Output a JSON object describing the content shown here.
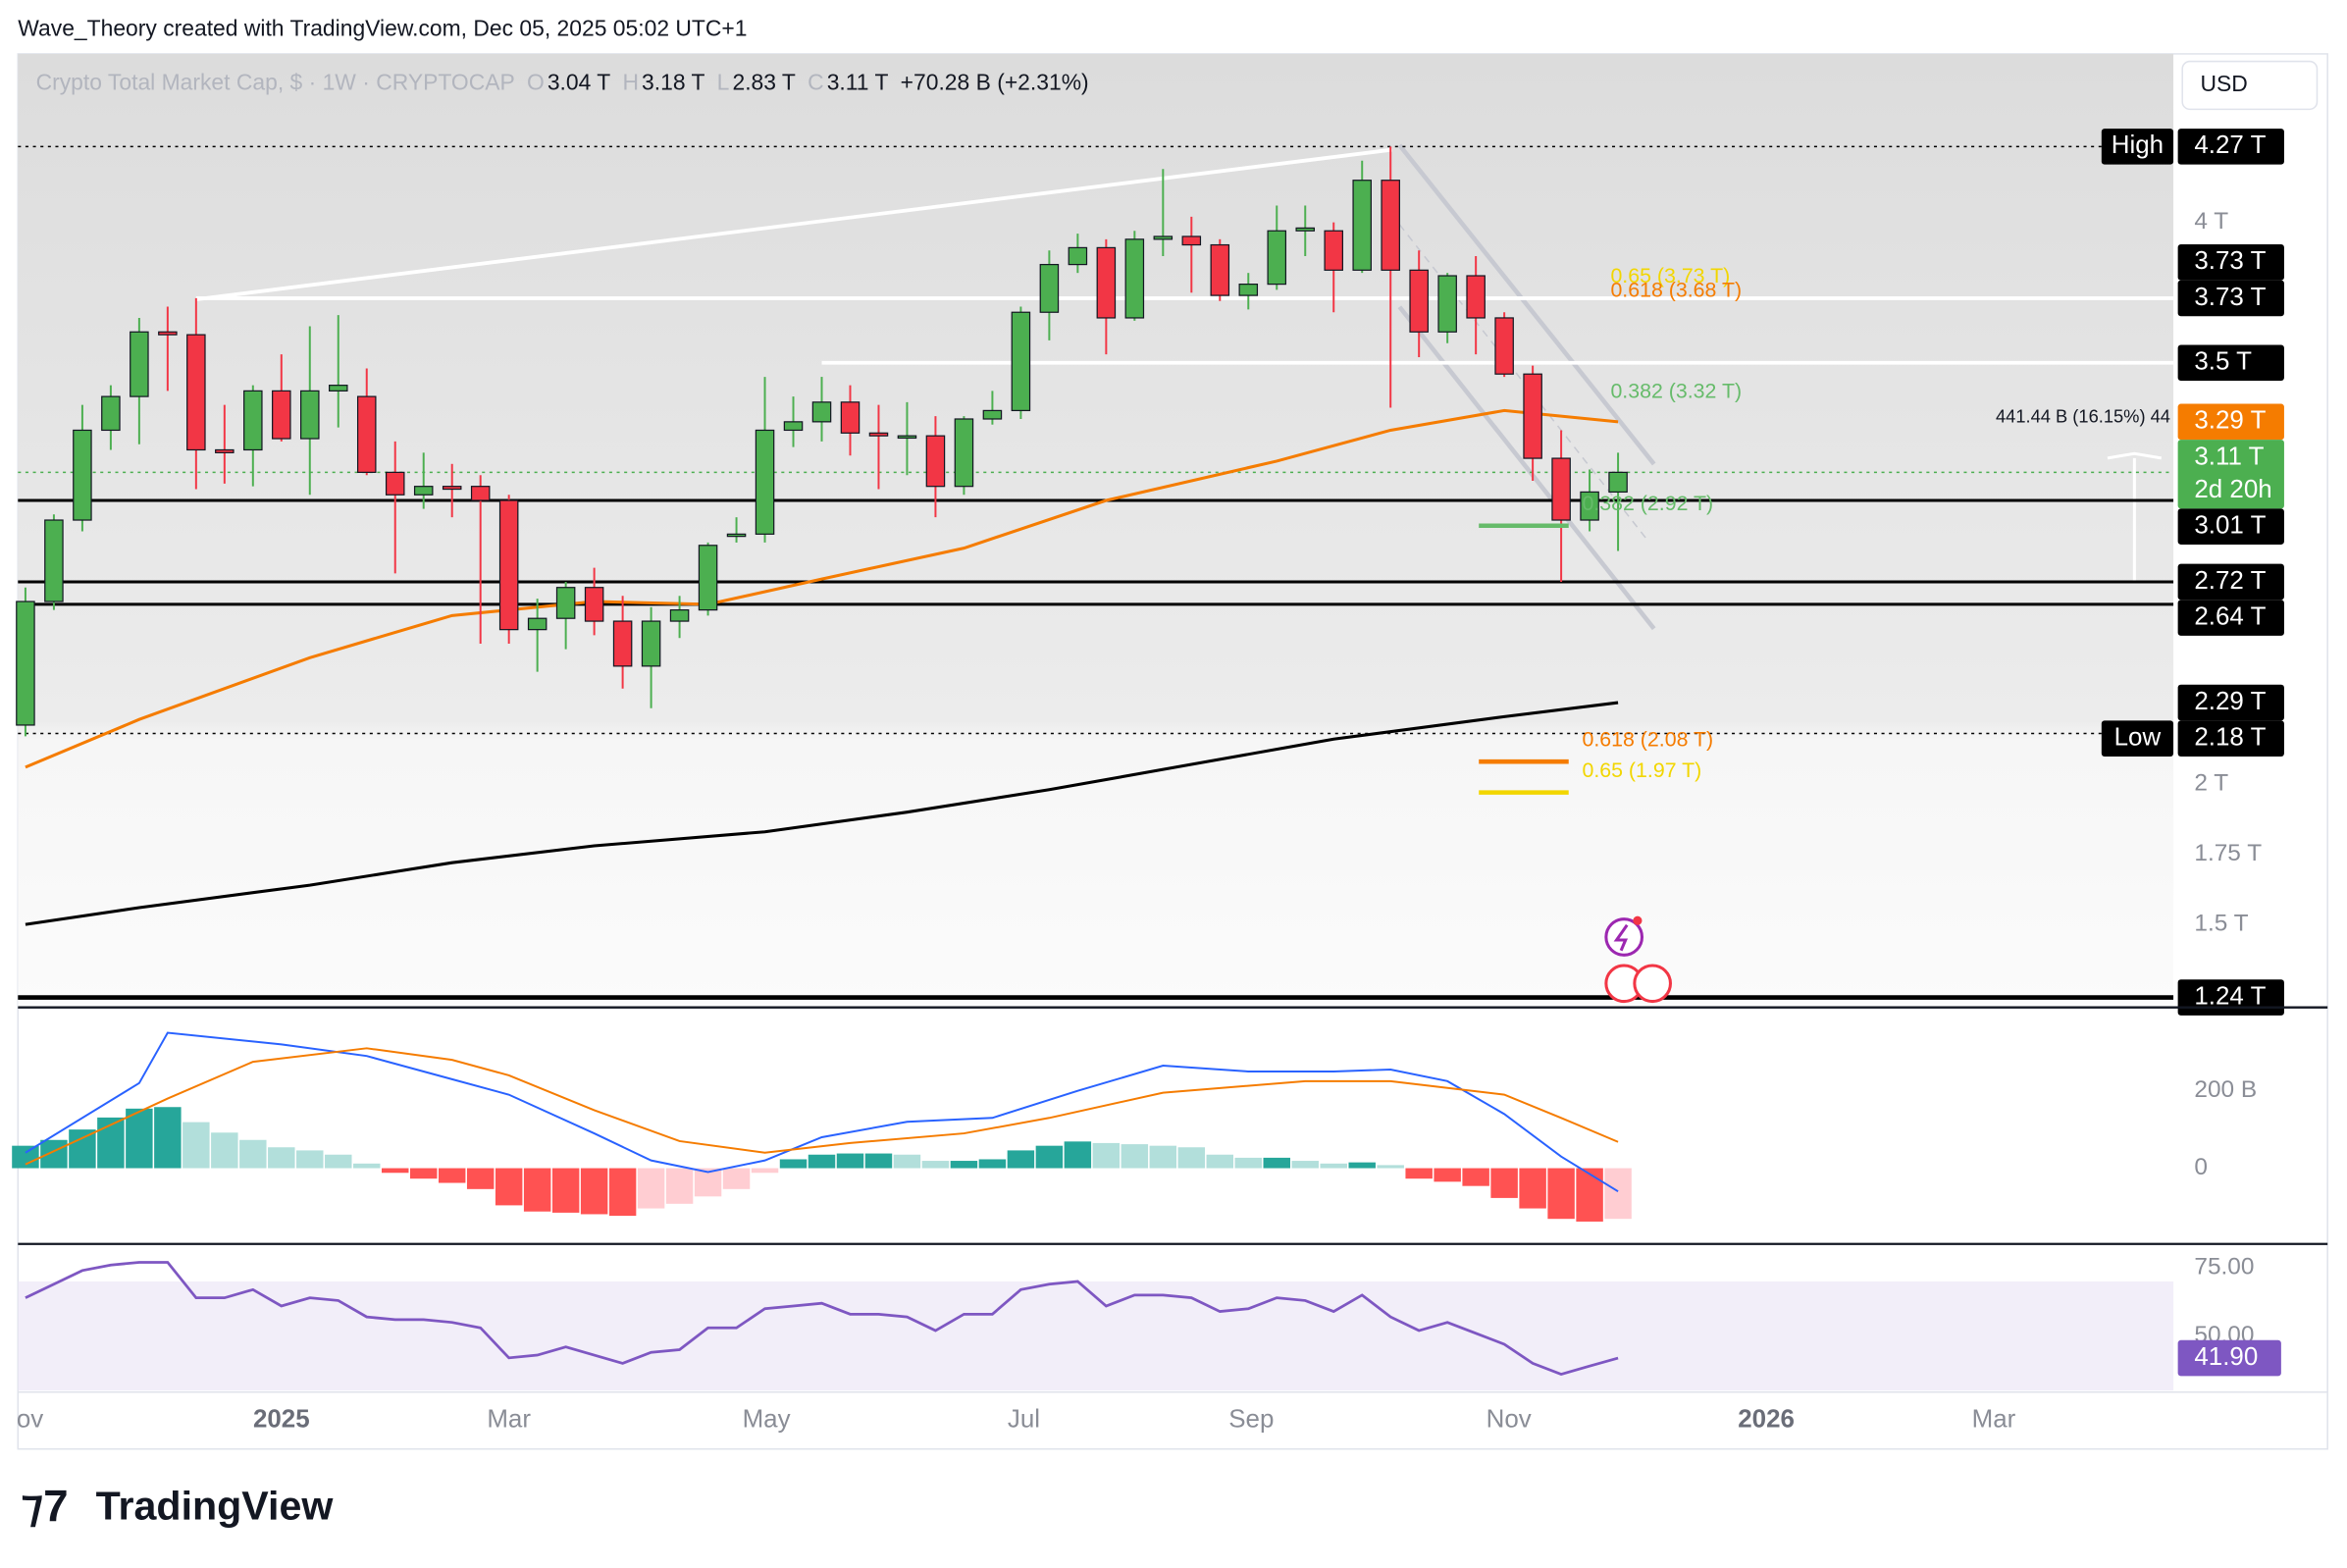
{
  "attribution": "Wave_Theory created with TradingView.com, Dec 05, 2025 05:02 UTC+1",
  "currency": "USD",
  "brand": "TradingView",
  "chart_data": {
    "type": "candlestick",
    "title": "Crypto Total Market Cap, $ · 1W · CRYPTOCAP",
    "ohlc_legend": [
      {
        "key": "O",
        "text": "3.04 T"
      },
      {
        "key": "H",
        "text": "3.18 T"
      },
      {
        "key": "L",
        "text": "2.83 T"
      },
      {
        "key": "C",
        "text": "3.11 T"
      }
    ],
    "change": "+70.28 B (+2.31%)",
    "up_color": "#4caf50",
    "down_color": "#f23645",
    "ylim": [
      1.21,
      4.6
    ],
    "yticks": [
      {
        "value": 4,
        "label": "4 T"
      },
      {
        "value": 2,
        "label": "2 T"
      },
      {
        "value": 1.75,
        "label": "1.75 T"
      },
      {
        "value": 1.5,
        "label": "1.5 T"
      }
    ],
    "candles": {
      "open": [
        2.21,
        2.65,
        2.94,
        3.26,
        3.38,
        3.61,
        3.6,
        3.19,
        3.19,
        3.4,
        3.23,
        3.4,
        3.38,
        3.11,
        3.03,
        3.06,
        3.06,
        3.01,
        2.55,
        2.59,
        2.7,
        2.58,
        2.42,
        2.58,
        2.62,
        2.89,
        2.89,
        3.26,
        3.29,
        3.36,
        3.25,
        3.24,
        3.24,
        3.06,
        3.3,
        3.33,
        3.68,
        3.85,
        3.91,
        3.66,
        3.94,
        3.95,
        3.92,
        3.74,
        3.78,
        3.97,
        3.97,
        3.83,
        4.15,
        3.83,
        3.61,
        3.81,
        3.66,
        3.46,
        3.16,
        2.94,
        3.04
      ],
      "high": [
        2.7,
        2.96,
        3.35,
        3.42,
        3.66,
        3.7,
        3.73,
        3.35,
        3.42,
        3.53,
        3.63,
        3.67,
        3.48,
        3.22,
        3.18,
        3.14,
        3.1,
        3.03,
        2.66,
        2.72,
        2.77,
        2.67,
        2.63,
        2.67,
        2.86,
        2.95,
        3.45,
        3.38,
        3.45,
        3.42,
        3.35,
        3.36,
        3.31,
        3.31,
        3.4,
        3.7,
        3.9,
        3.96,
        3.94,
        3.97,
        4.19,
        4.02,
        3.94,
        3.82,
        4.06,
        4.06,
        4.0,
        4.22,
        4.27,
        3.9,
        3.82,
        3.88,
        3.68,
        3.49,
        3.26,
        3.12,
        3.18
      ],
      "low": [
        2.17,
        2.62,
        2.9,
        3.19,
        3.21,
        3.4,
        3.05,
        3.07,
        3.06,
        3.22,
        3.03,
        3.27,
        3.1,
        2.75,
        2.98,
        2.95,
        2.5,
        2.5,
        2.4,
        2.48,
        2.53,
        2.34,
        2.27,
        2.52,
        2.6,
        2.86,
        2.86,
        3.2,
        3.22,
        3.17,
        3.05,
        3.1,
        2.95,
        3.03,
        3.28,
        3.3,
        3.58,
        3.82,
        3.53,
        3.65,
        3.88,
        3.75,
        3.72,
        3.69,
        3.76,
        3.88,
        3.68,
        3.82,
        3.34,
        3.52,
        3.57,
        3.53,
        3.45,
        3.08,
        2.72,
        2.9,
        2.83
      ],
      "close": [
        2.65,
        2.94,
        3.26,
        3.38,
        3.61,
        3.6,
        3.19,
        3.18,
        3.4,
        3.23,
        3.4,
        3.42,
        3.11,
        3.03,
        3.06,
        3.05,
        3.01,
        2.55,
        2.59,
        2.7,
        2.58,
        2.42,
        2.58,
        2.62,
        2.85,
        2.89,
        3.26,
        3.29,
        3.36,
        3.25,
        3.24,
        3.24,
        3.06,
        3.3,
        3.33,
        3.68,
        3.85,
        3.91,
        3.66,
        3.94,
        3.95,
        3.92,
        3.74,
        3.78,
        3.97,
        3.98,
        3.83,
        4.15,
        3.83,
        3.61,
        3.81,
        3.66,
        3.46,
        3.16,
        2.94,
        3.04,
        3.11
      ]
    },
    "moving_averages": [
      {
        "color": "#f57c00",
        "x": [
          0,
          4,
          10,
          15,
          20,
          24,
          28,
          33,
          38,
          44,
          48,
          52,
          56
        ],
        "values": [
          2.06,
          2.23,
          2.45,
          2.6,
          2.65,
          2.64,
          2.73,
          2.84,
          3.01,
          3.15,
          3.26,
          3.33,
          3.29
        ]
      },
      {
        "color": "#000000",
        "x": [
          0,
          4,
          10,
          15,
          20,
          26,
          31,
          36,
          41,
          46,
          52,
          56
        ],
        "values": [
          1.5,
          1.56,
          1.64,
          1.72,
          1.78,
          1.83,
          1.9,
          1.98,
          2.07,
          2.16,
          2.24,
          2.29
        ]
      }
    ],
    "levels": [
      {
        "value": 4.27,
        "color": "#000000",
        "dash": true,
        "width": 1,
        "from": 0
      },
      {
        "value": 3.73,
        "color": "#ffffff",
        "dash": false,
        "width": 2.5,
        "from": 6
      },
      {
        "value": 3.5,
        "color": "#ffffff",
        "dash": false,
        "width": 2.5,
        "from": 28
      },
      {
        "value": 3.11,
        "color": "#4caf50",
        "dash": true,
        "width": 1,
        "from": 0
      },
      {
        "value": 3.01,
        "color": "#000000",
        "dash": false,
        "width": 2,
        "from": 0
      },
      {
        "value": 2.72,
        "color": "#000000",
        "dash": false,
        "width": 2,
        "from": 0
      },
      {
        "value": 2.64,
        "color": "#000000",
        "dash": false,
        "width": 2,
        "from": 0
      },
      {
        "value": 2.18,
        "color": "#000000",
        "dash": true,
        "width": 1,
        "from": 0
      },
      {
        "value": 1.24,
        "color": "#000000",
        "dash": false,
        "width": 3,
        "from": 0
      }
    ],
    "price_labels": [
      {
        "value": 4.27,
        "label": "4.27 T",
        "tag": "High",
        "bg": "#000000"
      },
      {
        "value": 3.73,
        "label": "3.73 T",
        "bg": "#000000"
      },
      {
        "value": 3.73,
        "label": "3.73 T",
        "bg": "#000000"
      },
      {
        "value": 3.5,
        "label": "3.5 T",
        "bg": "#000000"
      },
      {
        "value": 3.29,
        "label": "3.29 T",
        "bg": "#f57c00"
      },
      {
        "value": 3.11,
        "label": "3.11 T",
        "countdown": "2d 20h",
        "bg": "#4caf50"
      },
      {
        "value": 3.01,
        "label": "3.01 T",
        "bg": "#000000"
      },
      {
        "value": 2.72,
        "label": "2.72 T",
        "bg": "#000000"
      },
      {
        "value": 2.64,
        "label": "2.64 T",
        "bg": "#000000"
      },
      {
        "value": 2.29,
        "label": "2.29 T",
        "bg": "#000000"
      },
      {
        "value": 2.18,
        "label": "2.18 T",
        "tag": "Low",
        "bg": "#000000"
      },
      {
        "value": 1.24,
        "label": "1.24 T",
        "bg": "#000000"
      }
    ],
    "fibs": [
      {
        "label": "0.65 (3.73 T)",
        "value": 3.73,
        "color": "#f2d600",
        "marker_line": false
      },
      {
        "label": "0.618 (3.68 T)",
        "value": 3.68,
        "color": "#f57c00",
        "marker_line": false
      },
      {
        "label": "0.382 (3.32 T)",
        "value": 3.32,
        "color": "#66bb6a",
        "marker_line": false
      },
      {
        "label": "0.382 (2.92 T)",
        "value": 2.92,
        "color": "#66bb6a",
        "marker_line": true
      },
      {
        "label": "0.618 (2.08 T)",
        "value": 2.08,
        "color": "#f57c00",
        "marker_line": true
      },
      {
        "label": "0.65 (1.97 T)",
        "value": 1.97,
        "color": "#f2d600",
        "marker_line": true
      }
    ],
    "measure_label": "441.44 B (16.15%) 44",
    "x_labels": [
      "ov",
      "2025",
      "Mar",
      "May",
      "Jul",
      "Sep",
      "Nov",
      "2026",
      "Mar"
    ],
    "macd": {
      "ylim": [
        -188,
        404
      ],
      "yticks": [
        {
          "value": 200,
          "label": "200 B"
        },
        0
      ],
      "histogram": [
        58,
        73,
        100,
        131,
        154,
        158,
        119,
        92,
        73,
        54,
        46,
        35,
        12,
        -12,
        -27,
        -38,
        -54,
        -96,
        -112,
        -115,
        -119,
        -123,
        -104,
        -92,
        -73,
        -54,
        -12,
        23,
        35,
        38,
        38,
        35,
        19,
        19,
        23,
        46,
        58,
        69,
        65,
        62,
        58,
        54,
        35,
        27,
        27,
        19,
        12,
        15,
        8,
        -27,
        -35,
        -46,
        -77,
        -104,
        -131,
        -138,
        -131
      ],
      "hist_colors": {
        "pos_rising": "#26a69a",
        "pos_falling": "#b2dfdb",
        "neg_falling": "#ff5252",
        "neg_rising": "#ffcdd2"
      },
      "lines": [
        {
          "color": "#2962ff",
          "x": [
            0,
            4,
            5,
            9,
            12,
            15,
            17,
            20,
            22,
            24,
            26,
            28,
            31,
            34,
            37,
            40,
            43,
            46,
            48,
            50,
            52,
            54,
            56
          ],
          "values": [
            40,
            220,
            350,
            320,
            290,
            230,
            190,
            90,
            20,
            -10,
            20,
            80,
            120,
            130,
            200,
            265,
            250,
            250,
            255,
            225,
            140,
            30,
            -60
          ]
        },
        {
          "color": "#f57c00",
          "x": [
            0,
            5,
            8,
            12,
            15,
            17,
            20,
            23,
            26,
            29,
            33,
            36,
            40,
            45,
            48,
            52,
            54,
            56
          ],
          "values": [
            10,
            180,
            275,
            310,
            280,
            240,
            150,
            70,
            40,
            65,
            90,
            130,
            195,
            225,
            225,
            190,
            130,
            68
          ]
        }
      ]
    },
    "rsi": {
      "ylim": [
        30,
        83.2
      ],
      "yticks": [
        {
          "value": 75,
          "label": "75.00"
        },
        {
          "value": 50,
          "label": "50.00"
        }
      ],
      "band": [
        30,
        70
      ],
      "color": "#7e57c2",
      "values": [
        64,
        69,
        74,
        76,
        77,
        77,
        64,
        64,
        67,
        61,
        64,
        63,
        57,
        56,
        56,
        55,
        53,
        42,
        43,
        46,
        43,
        40,
        44,
        45,
        53,
        53,
        60,
        61,
        62,
        58,
        58,
        57,
        52,
        58,
        58,
        67,
        69,
        70,
        61,
        65,
        65,
        64,
        59,
        60,
        64,
        63,
        59,
        65,
        57,
        52,
        55,
        51,
        47,
        40,
        36,
        39,
        41.9
      ],
      "value_labels": [
        null,
        null,
        null,
        null,
        null,
        null,
        null,
        null,
        null,
        null,
        null,
        null,
        null,
        null,
        null,
        null,
        null,
        null,
        null,
        null,
        null,
        null,
        null,
        null,
        null,
        null,
        null,
        null,
        null,
        null,
        null,
        null,
        null,
        null,
        null,
        null,
        null,
        null,
        null,
        null,
        null,
        null,
        null,
        null,
        null,
        null,
        null,
        null,
        null,
        null,
        null,
        null,
        null,
        null,
        null,
        null,
        "41.90"
      ]
    }
  }
}
